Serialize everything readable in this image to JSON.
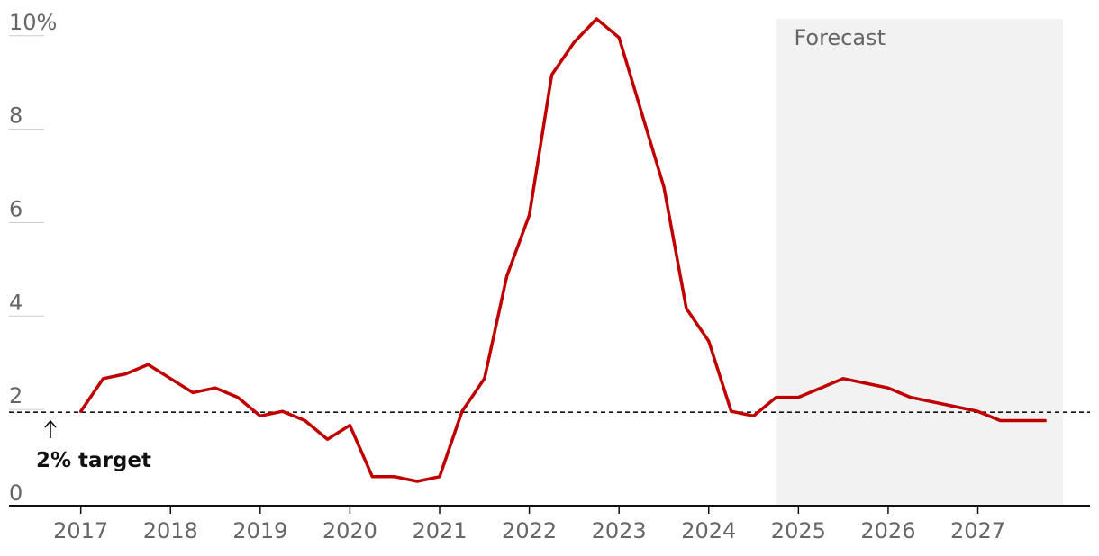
{
  "chart_data": {
    "type": "line",
    "ylim": [
      0,
      10.4
    ],
    "y_ticks": [
      {
        "value": 10,
        "label": "10%"
      },
      {
        "value": 8,
        "label": "8"
      },
      {
        "value": 6,
        "label": "6"
      },
      {
        "value": 4,
        "label": "4"
      },
      {
        "value": 2,
        "label": "2"
      },
      {
        "value": 0,
        "label": "0"
      }
    ],
    "xlim": [
      2016.2,
      2028.25
    ],
    "x_ticks": [
      2017,
      2018,
      2019,
      2020,
      2021,
      2022,
      2023,
      2024,
      2025,
      2026,
      2027
    ],
    "x_tick_labels": [
      "2017",
      "2018",
      "2019",
      "2020",
      "2021",
      "2022",
      "2023",
      "2024",
      "2025",
      "2026",
      "2027"
    ],
    "grid": false,
    "forecast": {
      "label": "Forecast",
      "start": 2024.75,
      "end": 2027.95
    },
    "target": {
      "value": 1.98,
      "label": "2% target"
    },
    "series": [
      {
        "color": "#c00000",
        "points": [
          [
            2017.0,
            2.0
          ],
          [
            2017.25,
            2.7
          ],
          [
            2017.5,
            2.8
          ],
          [
            2017.75,
            3.0
          ],
          [
            2018.0,
            2.7
          ],
          [
            2018.25,
            2.4
          ],
          [
            2018.5,
            2.5
          ],
          [
            2018.75,
            2.3
          ],
          [
            2019.0,
            1.9
          ],
          [
            2019.25,
            2.0
          ],
          [
            2019.5,
            1.8
          ],
          [
            2019.75,
            1.4
          ],
          [
            2020.0,
            1.7
          ],
          [
            2020.25,
            0.6
          ],
          [
            2020.5,
            0.6
          ],
          [
            2020.75,
            0.5
          ],
          [
            2021.0,
            0.6
          ],
          [
            2021.25,
            2.0
          ],
          [
            2021.5,
            2.7
          ],
          [
            2021.75,
            4.9
          ],
          [
            2022.0,
            6.2
          ],
          [
            2022.25,
            9.2
          ],
          [
            2022.5,
            9.9
          ],
          [
            2022.75,
            10.4
          ],
          [
            2023.0,
            10.0
          ],
          [
            2023.25,
            8.4
          ],
          [
            2023.5,
            6.8
          ],
          [
            2023.75,
            4.2
          ],
          [
            2024.0,
            3.5
          ],
          [
            2024.25,
            2.0
          ],
          [
            2024.5,
            1.9
          ],
          [
            2024.75,
            2.3
          ],
          [
            2025.0,
            2.3
          ],
          [
            2025.25,
            2.5
          ],
          [
            2025.5,
            2.7
          ],
          [
            2025.75,
            2.6
          ],
          [
            2026.0,
            2.5
          ],
          [
            2026.25,
            2.3
          ],
          [
            2026.5,
            2.2
          ],
          [
            2026.75,
            2.1
          ],
          [
            2027.0,
            2.0
          ],
          [
            2027.25,
            1.8
          ],
          [
            2027.5,
            1.8
          ],
          [
            2027.75,
            1.8
          ]
        ]
      }
    ]
  }
}
